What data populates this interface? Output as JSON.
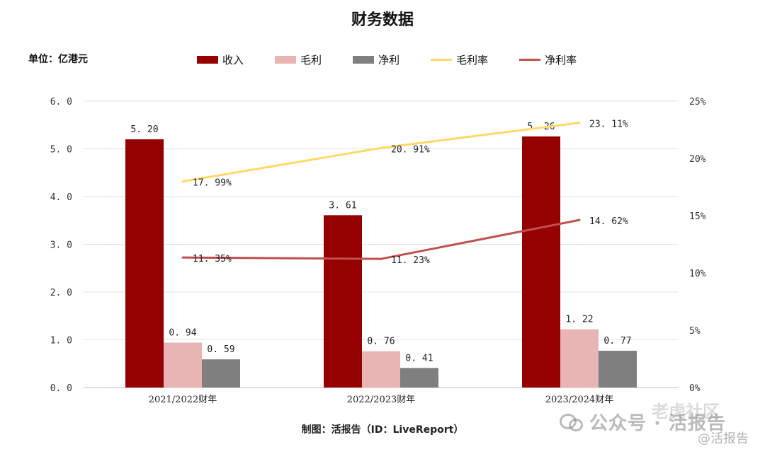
{
  "title": "财务数据",
  "unit_label": "单位：亿港元",
  "footer": "制图：活报告（ID：LiveReport）",
  "watermark": {
    "main": "公众号 · 活报告",
    "secondary": "老虎社区",
    "sub": "@活报告"
  },
  "legend": [
    {
      "label": "收入",
      "kind": "box",
      "color": "#950000"
    },
    {
      "label": "毛利",
      "kind": "box",
      "color": "#e8b4b4"
    },
    {
      "label": "净利",
      "kind": "box",
      "color": "#7f7f7f"
    },
    {
      "label": "毛利率",
      "kind": "line",
      "color": "#ffd966"
    },
    {
      "label": "净利率",
      "kind": "line",
      "color": "#c0504d"
    }
  ],
  "chart_data": {
    "type": "bar",
    "title": "财务数据",
    "categories": [
      "2021/2022财年",
      "2022/2023财年",
      "2023/2024财年"
    ],
    "series": [
      {
        "name": "收入",
        "type": "bar",
        "axis": "left",
        "color": "#950000",
        "values": [
          5.2,
          3.61,
          5.26
        ],
        "labels": [
          "5.20",
          "3.61",
          "5.26"
        ]
      },
      {
        "name": "毛利",
        "type": "bar",
        "axis": "left",
        "color": "#e8b4b4",
        "values": [
          0.94,
          0.76,
          1.22
        ],
        "labels": [
          "0.94",
          "0.76",
          "1.22"
        ]
      },
      {
        "name": "净利",
        "type": "bar",
        "axis": "left",
        "color": "#7f7f7f",
        "values": [
          0.59,
          0.41,
          0.77
        ],
        "labels": [
          "0.59",
          "0.41",
          "0.77"
        ]
      },
      {
        "name": "毛利率",
        "type": "line",
        "axis": "right",
        "color": "#ffd966",
        "values": [
          17.99,
          20.91,
          23.11
        ],
        "labels": [
          "17.99%",
          "20.91%",
          "23.11%"
        ]
      },
      {
        "name": "净利率",
        "type": "line",
        "axis": "right",
        "color": "#c0504d",
        "values": [
          11.35,
          11.23,
          14.62
        ],
        "labels": [
          "11.35%",
          "11.23%",
          "14.62%"
        ]
      }
    ],
    "ylim": [
      0,
      6
    ],
    "yticks": [
      "0.0",
      "1.0",
      "2.0",
      "3.0",
      "4.0",
      "5.0",
      "6.0"
    ],
    "y2lim": [
      0,
      25
    ],
    "y2ticks": [
      "0%",
      "5%",
      "10%",
      "15%",
      "20%",
      "25%"
    ],
    "grid": true,
    "legend_position": "top"
  }
}
